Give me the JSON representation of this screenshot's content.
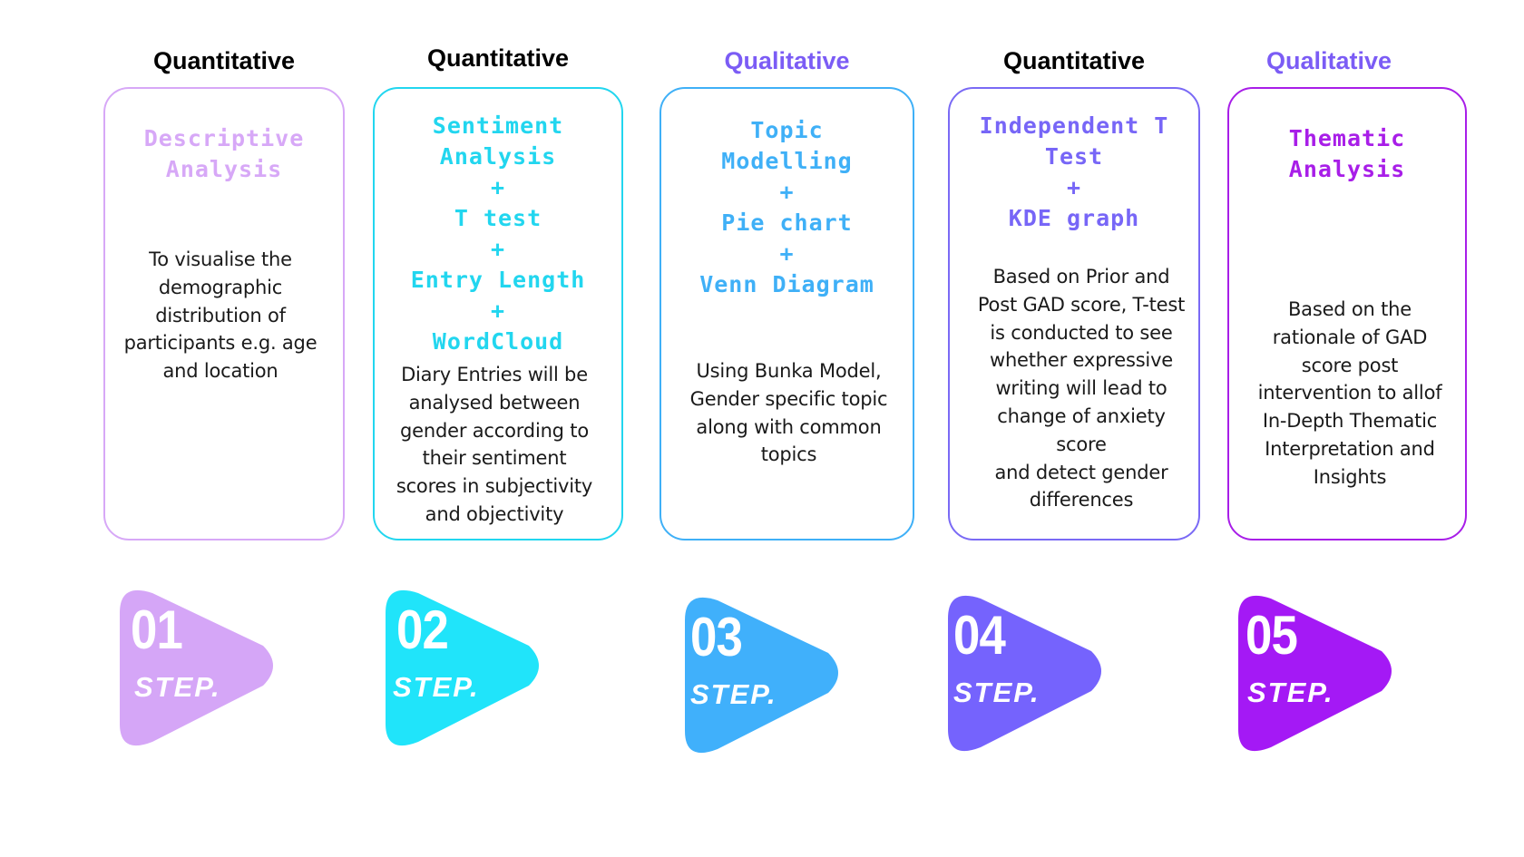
{
  "steps": [
    {
      "category": "Quantitative",
      "category_color": "#000000",
      "border_color": "#d7a8f7",
      "method_color": "#d7a8f7",
      "badge_color": "#d5a6f7",
      "method_lines": [
        "Descriptive",
        "Analysis"
      ],
      "description_lines": [
        "To visualise the",
        "demographic",
        "distribution of",
        "participants e.g.  age",
        "and location"
      ],
      "number": "01",
      "step_label": "STEP."
    },
    {
      "category": "Quantitative",
      "category_color": "#000000",
      "border_color": "#22d6ef",
      "method_color": "#22d6ef",
      "badge_color": "#20e4fa",
      "method_lines": [
        "Sentiment",
        "Analysis",
        "+",
        "T test",
        "+",
        "Entry Length",
        "+",
        "WordCloud"
      ],
      "description_lines": [
        "Diary Entries will be",
        "analysed between",
        "gender according to",
        "their sentiment",
        "scores in subjectivity",
        "and objectivity"
      ],
      "number": "02",
      "step_label": "STEP."
    },
    {
      "category": "Qualitative",
      "category_color": "#7b5cf5",
      "border_color": "#3fb0f7",
      "method_color": "#3fb0f7",
      "badge_color": "#40b0fb",
      "method_lines": [
        "Topic",
        "Modelling",
        "+",
        "Pie chart",
        "+",
        "Venn Diagram"
      ],
      "description_lines": [
        "Using Bunka Model,",
        "Gender specific topic",
        "along with common",
        "topics"
      ],
      "number": "03",
      "step_label": "STEP."
    },
    {
      "category": "Quantitative",
      "category_color": "#000000",
      "border_color": "#7a6af5",
      "method_color": "#7766f7",
      "badge_color": "#7563fd",
      "method_lines": [
        "Independent T",
        "Test",
        "+",
        "KDE graph"
      ],
      "description_lines": [
        "Based on Prior and",
        "Post GAD score, T-test",
        "is conducted to see",
        "whether expressive",
        "writing will lead to",
        "change of anxiety",
        "score",
        "and detect gender",
        "differences"
      ],
      "number": "04",
      "step_label": "STEP."
    },
    {
      "category": "Qualitative",
      "category_color": "#7b5cf5",
      "border_color": "#a81ee8",
      "method_color": "#a81ee8",
      "badge_color": "#a419f5",
      "method_lines": [
        "Thematic",
        "Analysis"
      ],
      "description_lines": [
        "Based on the",
        "rationale of GAD",
        "score post",
        "intervention to allof",
        "In-Depth Thematic",
        "Interpretation and",
        "Insights"
      ],
      "number": "05",
      "step_label": "STEP."
    }
  ]
}
